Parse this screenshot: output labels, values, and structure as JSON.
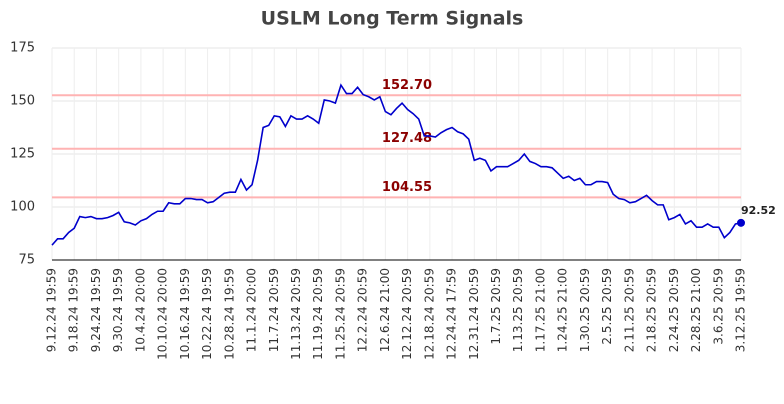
{
  "chart_data": {
    "type": "line",
    "title": "USLM Long Term Signals",
    "categories": [
      "9.12.24 19:59",
      null,
      null,
      null,
      "9.18.24 19:59",
      null,
      null,
      null,
      "9.24.24 19:59",
      null,
      null,
      null,
      "9.30.24 19:59",
      null,
      null,
      null,
      "10.4.24 20:00",
      null,
      null,
      null,
      "10.10.24 20:00",
      null,
      null,
      null,
      "10.16.24 19:59",
      null,
      null,
      null,
      "10.22.24 19:59",
      null,
      null,
      null,
      "10.28.24 19:59",
      null,
      null,
      null,
      "11.1.24 20:00",
      null,
      null,
      null,
      "11.7.24 20:59",
      null,
      null,
      null,
      "11.13.24 20:59",
      null,
      null,
      null,
      "11.19.24 20:59",
      null,
      null,
      null,
      "11.25.24 20:59",
      null,
      null,
      null,
      "12.2.24 20:59",
      null,
      null,
      null,
      "12.6.24 21:00",
      null,
      null,
      null,
      "12.12.24 20:59",
      null,
      null,
      null,
      "12.18.24 20:59",
      null,
      null,
      null,
      "12.24.24 17:59",
      null,
      null,
      null,
      "12.31.24 20:59",
      null,
      null,
      null,
      "1.7.25 20:59",
      null,
      null,
      null,
      "1.13.25 20:59",
      null,
      null,
      null,
      "1.17.25 21:00",
      null,
      null,
      null,
      "1.24.25 21:00",
      null,
      null,
      null,
      "1.30.25 20:59",
      null,
      null,
      null,
      "2.5.25 20:59",
      null,
      null,
      null,
      "2.11.25 20:59",
      null,
      null,
      null,
      "2.18.25 20:59",
      null,
      null,
      null,
      "2.24.25 20:59",
      null,
      null,
      null,
      "2.28.25 21:00",
      null,
      null,
      null,
      "3.6.25 20:59",
      null,
      null,
      null,
      "3.12.25 19:59"
    ],
    "values": [
      82,
      85,
      85,
      88,
      90,
      95.5,
      95,
      95.5,
      94.5,
      94.5,
      95,
      96,
      97.5,
      93,
      92.5,
      91.5,
      93.5,
      94.5,
      96.5,
      98,
      98,
      102,
      101.5,
      101.5,
      104,
      104,
      103.5,
      103.5,
      102,
      102.5,
      104.5,
      106.5,
      107,
      107,
      113,
      108,
      110.5,
      122,
      137.5,
      138.5,
      143,
      142.5,
      138,
      143,
      141.5,
      141.5,
      143,
      141.5,
      139.5,
      150.5,
      150,
      149,
      157.5,
      153.5,
      153.5,
      156.5,
      153,
      152,
      150.5,
      152,
      145,
      143.5,
      146.5,
      149,
      146,
      144,
      141.5,
      133.5,
      133.5,
      133,
      135,
      136.5,
      137.5,
      135.5,
      134.5,
      132,
      122,
      123,
      122,
      117,
      119,
      119,
      119,
      120.5,
      122,
      125,
      121.5,
      120.5,
      119,
      119,
      118.5,
      116,
      113.5,
      114.5,
      112.5,
      113.5,
      110.5,
      110.5,
      112,
      112,
      111.5,
      106,
      104,
      103.5,
      102,
      102.5,
      104,
      105.5,
      103,
      101,
      101,
      94,
      95,
      96.5,
      92,
      93.5,
      90.5,
      90.5,
      92,
      90.5,
      90.5,
      85.5,
      88,
      92,
      92.52
    ],
    "color": "#0000cc",
    "ylim": [
      75,
      175
    ],
    "yticks": [
      75,
      100,
      125,
      150,
      175
    ],
    "grid": true,
    "hlines": [
      {
        "value": 152.7,
        "label": "152.70"
      },
      {
        "value": 127.48,
        "label": "127.48"
      },
      {
        "value": 104.55,
        "label": "104.55"
      }
    ],
    "hline_color": "#ffb3b3",
    "hline_label_color": "#8b0000"
  }
}
